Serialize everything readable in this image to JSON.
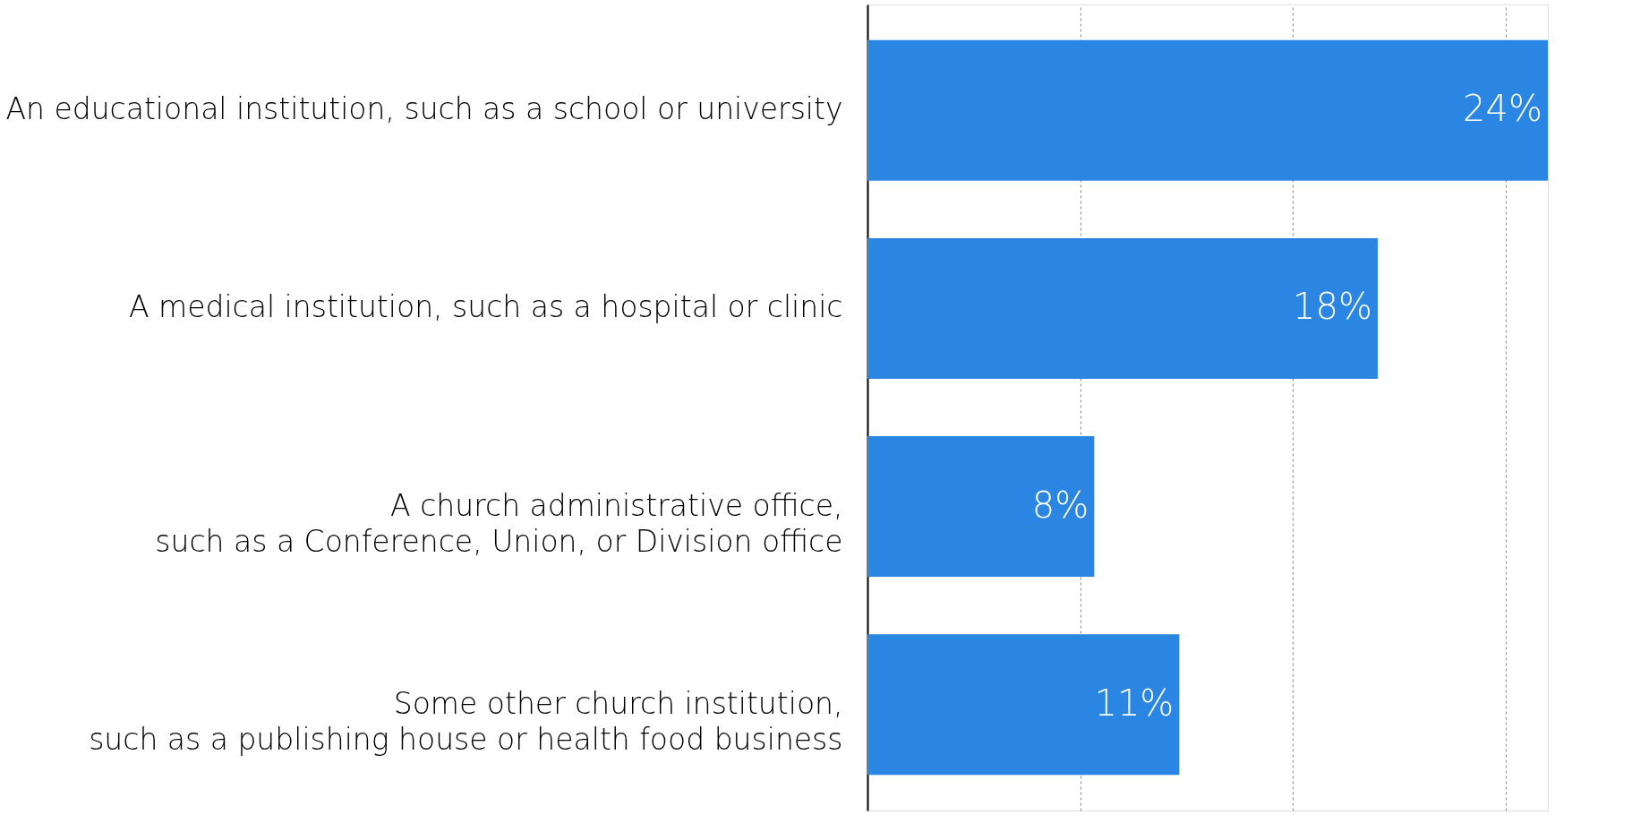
{
  "chart_data": {
    "type": "bar",
    "orientation": "horizontal",
    "categories": [
      "An educational institution, such as a school or university",
      "A medical institution, such as a hospital or clinic",
      "A church administrative office,\nsuch as a Conference, Union, or Division office",
      "Some other church institution,\nsuch as a publishing house or health food business"
    ],
    "values": [
      24,
      18,
      8,
      11
    ],
    "value_labels": [
      "24%",
      "18%",
      "8%",
      "11%"
    ],
    "color": "#2a86e2",
    "xlim": [
      0,
      24
    ],
    "xticks": [
      {
        "value": 0,
        "label": null
      },
      {
        "value": 7.5,
        "label": null
      },
      {
        "value": 15,
        "label": null
      },
      {
        "value": 22.5,
        "label": null
      }
    ],
    "grid": "x",
    "tick_labels": "y"
  }
}
